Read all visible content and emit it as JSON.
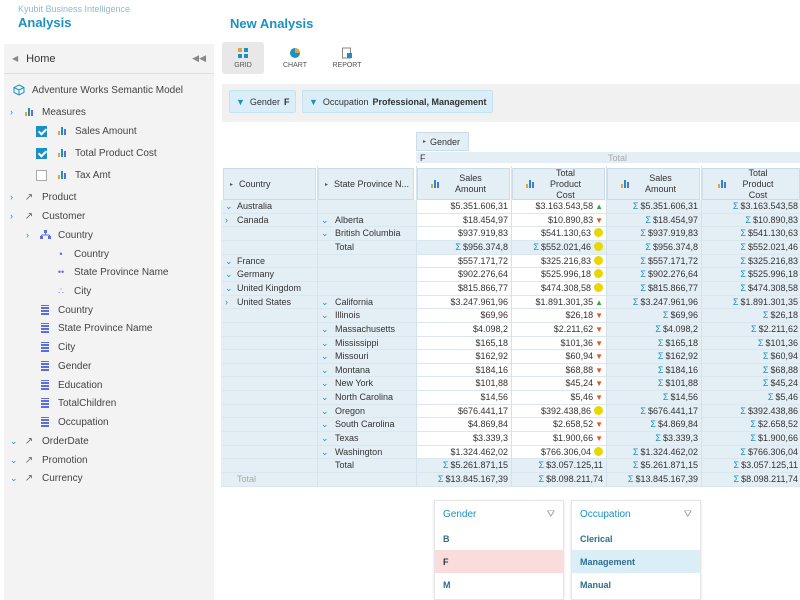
{
  "app": {
    "brand_sub": "Kyubit Business Intelligence",
    "brand_title": "Analysis",
    "page_title": "New Analysis"
  },
  "sidebar": {
    "home": "Home",
    "model": "Adventure Works Semantic Model",
    "items": [
      {
        "label": "Measures",
        "kind": "measure-folder",
        "exp": "›",
        "indent": 0
      },
      {
        "label": "Sales Amount",
        "kind": "measure",
        "checked": true,
        "indent": 1
      },
      {
        "label": "Total Product Cost",
        "kind": "measure",
        "checked": true,
        "indent": 1
      },
      {
        "label": "Tax Amt",
        "kind": "measure",
        "checked": false,
        "indent": 1
      },
      {
        "label": "Product",
        "kind": "dim",
        "exp": "›",
        "indent": 0
      },
      {
        "label": "Customer",
        "kind": "dim",
        "exp": "›",
        "indent": 0
      },
      {
        "label": "Country",
        "kind": "hier",
        "exp": "›",
        "indent": 1
      },
      {
        "label": "Country",
        "kind": "level",
        "indent": 2
      },
      {
        "label": "State Province Name",
        "kind": "level2",
        "indent": 2
      },
      {
        "label": "City",
        "kind": "level3",
        "indent": 2
      },
      {
        "label": "Country",
        "kind": "attr",
        "indent": 1
      },
      {
        "label": "State Province Name",
        "kind": "attr",
        "indent": 1
      },
      {
        "label": "City",
        "kind": "attr",
        "indent": 1
      },
      {
        "label": "Gender",
        "kind": "attr",
        "indent": 1
      },
      {
        "label": "Education",
        "kind": "attr",
        "indent": 1
      },
      {
        "label": "TotalChildren",
        "kind": "attr",
        "indent": 1
      },
      {
        "label": "Occupation",
        "kind": "attr",
        "indent": 1
      },
      {
        "label": "OrderDate",
        "kind": "dim",
        "exp": "⌄",
        "indent": 0
      },
      {
        "label": "Promotion",
        "kind": "dim",
        "exp": "⌄",
        "indent": 0
      },
      {
        "label": "Currency",
        "kind": "dim",
        "exp": "⌄",
        "indent": 0
      }
    ]
  },
  "toolbar": {
    "grid": "GRID",
    "chart": "CHART",
    "report": "REPORT"
  },
  "filters": [
    {
      "field": "Gender",
      "value": "F"
    },
    {
      "field": "Occupation",
      "value": "Professional, Management"
    }
  ],
  "pivot": {
    "col_dim": "Gender",
    "col_f": "F",
    "col_total": "Total",
    "row_dim1": "Country",
    "row_dim2": "State Province N...",
    "measure1": "Sales Amount",
    "measure2": "Total Product Cost",
    "grand_total_label": "Total",
    "rows": [
      {
        "c": "Australia",
        "ce": "⌄",
        "s": "",
        "se": "",
        "v1": "$5.351.606,31",
        "v2": "$3.163.543,58",
        "k": "up",
        "t1": "$5.351.606,31",
        "t2": "$3.163.543,58"
      },
      {
        "c": "Canada",
        "ce": "›",
        "s": "Alberta",
        "se": "⌄",
        "v1": "$18.454,97",
        "v2": "$10.890,83",
        "k": "dn",
        "t1": "$18.454,97",
        "t2": "$10.890,83"
      },
      {
        "c": "",
        "ce": "",
        "s": "British Columbia",
        "se": "⌄",
        "v1": "$937.919,83",
        "v2": "$541.130,63",
        "k": "dot",
        "t1": "$937.919,83",
        "t2": "$541.130,63"
      },
      {
        "c": "",
        "ce": "",
        "s": "Total",
        "se": "",
        "v1": "$956.374,8",
        "v2": "$552.021,46",
        "k": "dot",
        "t1": "$956.374,8",
        "t2": "$552.021,46",
        "sub": true
      },
      {
        "c": "France",
        "ce": "⌄",
        "s": "",
        "se": "",
        "v1": "$557.171,72",
        "v2": "$325.216,83",
        "k": "dot",
        "t1": "$557.171,72",
        "t2": "$325.216,83"
      },
      {
        "c": "Germany",
        "ce": "⌄",
        "s": "",
        "se": "",
        "v1": "$902.276,64",
        "v2": "$525.996,18",
        "k": "dot",
        "t1": "$902.276,64",
        "t2": "$525.996,18"
      },
      {
        "c": "United Kingdom",
        "ce": "⌄",
        "s": "",
        "se": "",
        "v1": "$815.866,77",
        "v2": "$474.308,58",
        "k": "dot",
        "t1": "$815.866,77",
        "t2": "$474.308,58"
      },
      {
        "c": "United States",
        "ce": "›",
        "s": "California",
        "se": "⌄",
        "v1": "$3.247.961,96",
        "v2": "$1.891.301,35",
        "k": "up",
        "t1": "$3.247.961,96",
        "t2": "$1.891.301,35"
      },
      {
        "c": "",
        "ce": "",
        "s": "Illinois",
        "se": "⌄",
        "v1": "$69,96",
        "v2": "$26,18",
        "k": "dn",
        "t1": "$69,96",
        "t2": "$26,18"
      },
      {
        "c": "",
        "ce": "",
        "s": "Massachusetts",
        "se": "⌄",
        "v1": "$4.098,2",
        "v2": "$2.211,62",
        "k": "dn",
        "t1": "$4.098,2",
        "t2": "$2.211,62"
      },
      {
        "c": "",
        "ce": "",
        "s": "Mississippi",
        "se": "⌄",
        "v1": "$165,18",
        "v2": "$101,36",
        "k": "dn",
        "t1": "$165,18",
        "t2": "$101,36"
      },
      {
        "c": "",
        "ce": "",
        "s": "Missouri",
        "se": "⌄",
        "v1": "$162,92",
        "v2": "$60,94",
        "k": "dn",
        "t1": "$162,92",
        "t2": "$60,94"
      },
      {
        "c": "",
        "ce": "",
        "s": "Montana",
        "se": "⌄",
        "v1": "$184,16",
        "v2": "$68,88",
        "k": "dn",
        "t1": "$184,16",
        "t2": "$68,88"
      },
      {
        "c": "",
        "ce": "",
        "s": "New York",
        "se": "⌄",
        "v1": "$101,88",
        "v2": "$45,24",
        "k": "dn",
        "t1": "$101,88",
        "t2": "$45,24"
      },
      {
        "c": "",
        "ce": "",
        "s": "North Carolina",
        "se": "⌄",
        "v1": "$14,56",
        "v2": "$5,46",
        "k": "dn",
        "t1": "$14,56",
        "t2": "$5,46"
      },
      {
        "c": "",
        "ce": "",
        "s": "Oregon",
        "se": "⌄",
        "v1": "$676.441,17",
        "v2": "$392.438,86",
        "k": "dot",
        "t1": "$676.441,17",
        "t2": "$392.438,86"
      },
      {
        "c": "",
        "ce": "",
        "s": "South Carolina",
        "se": "⌄",
        "v1": "$4.869,84",
        "v2": "$2.658,52",
        "k": "dn",
        "t1": "$4.869,84",
        "t2": "$2.658,52"
      },
      {
        "c": "",
        "ce": "",
        "s": "Texas",
        "se": "⌄",
        "v1": "$3.339,3",
        "v2": "$1.900,66",
        "k": "dn",
        "t1": "$3.339,3",
        "t2": "$1.900,66"
      },
      {
        "c": "",
        "ce": "",
        "s": "Washington",
        "se": "⌄",
        "v1": "$1.324.462,02",
        "v2": "$766.306,04",
        "k": "dot",
        "t1": "$1.324.462,02",
        "t2": "$766.306,04"
      },
      {
        "c": "",
        "ce": "",
        "s": "Total",
        "se": "",
        "v1": "$5.261.871,15",
        "v2": "$3.057.125,11",
        "k": "",
        "t1": "$5.261.871,15",
        "t2": "$3.057.125,11",
        "sub": true
      },
      {
        "c": "Total",
        "ce": "",
        "s": "",
        "se": "",
        "v1": "$13.845.167,39",
        "v2": "$8.098.211,74",
        "k": "",
        "t1": "$13.845.167,39",
        "t2": "$8.098.211,74",
        "grand": true
      }
    ]
  },
  "slicers": [
    {
      "title": "Gender",
      "items": [
        "B",
        "F",
        "M"
      ],
      "selected": 1,
      "sel_class": "sel-red"
    },
    {
      "title": "Occupation",
      "items": [
        "Clerical",
        "Management",
        "Manual"
      ],
      "selected": 1,
      "sel_class": "sel-blue"
    }
  ],
  "colors": {
    "accent": "#1a91c4",
    "header_bg": "#e3eef5",
    "up": "#3fa34d",
    "down": "#e05a28",
    "neutral": "#e8d800"
  }
}
